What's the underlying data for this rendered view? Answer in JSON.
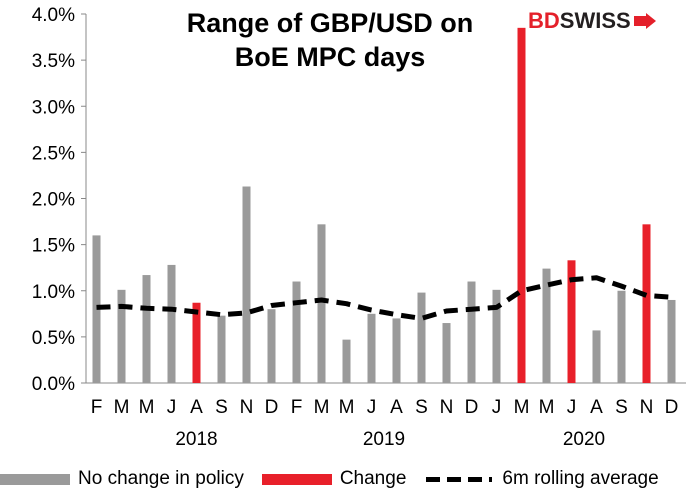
{
  "title_line1": "Range of GBP/USD on",
  "title_line2": "BoE MPC days",
  "logo": {
    "part1": "BD",
    "part2": "SWISS"
  },
  "colors": {
    "no_change": "#9a9a9a",
    "change": "#e8202a",
    "rolling": "#000000"
  },
  "legend": {
    "no_change": "No change in policy",
    "change": "Change",
    "rolling": "6m rolling average"
  },
  "chart_data": {
    "type": "bar",
    "title": "Range of GBP/USD on BoE MPC days",
    "ylim": [
      0,
      4.0
    ],
    "yticks": [
      "0.0%",
      "0.5%",
      "1.0%",
      "1.5%",
      "2.0%",
      "2.5%",
      "3.0%",
      "3.5%",
      "4.0%"
    ],
    "categories": [
      "F",
      "M",
      "M",
      "J",
      "A",
      "S",
      "N",
      "D",
      "F",
      "M",
      "M",
      "J",
      "A",
      "S",
      "N",
      "D",
      "J",
      "M",
      "M",
      "J",
      "A",
      "S",
      "N",
      "D"
    ],
    "year_labels": [
      {
        "label": "2018",
        "center_index": 4
      },
      {
        "label": "2019",
        "center_index": 11.5
      },
      {
        "label": "2020",
        "center_index": 19.5
      }
    ],
    "series": [
      {
        "name": "No change in policy",
        "type": "bar",
        "values": [
          1.6,
          1.01,
          1.17,
          1.28,
          null,
          0.73,
          2.13,
          0.8,
          1.1,
          1.72,
          0.47,
          0.75,
          0.7,
          0.98,
          0.65,
          1.1,
          1.01,
          null,
          1.24,
          null,
          0.57,
          1.0,
          null,
          0.9
        ]
      },
      {
        "name": "Change",
        "type": "bar",
        "values": [
          null,
          null,
          null,
          null,
          0.87,
          null,
          null,
          null,
          null,
          null,
          null,
          null,
          null,
          null,
          null,
          null,
          null,
          3.85,
          null,
          1.33,
          null,
          null,
          1.72,
          null
        ]
      },
      {
        "name": "6m rolling average",
        "type": "line",
        "values": [
          0.82,
          0.83,
          0.81,
          0.8,
          0.77,
          0.74,
          0.76,
          0.84,
          0.87,
          0.9,
          0.86,
          0.79,
          0.74,
          0.7,
          0.78,
          0.8,
          0.82,
          1.0,
          1.06,
          1.12,
          1.14,
          1.05,
          0.95,
          0.93
        ]
      }
    ]
  }
}
